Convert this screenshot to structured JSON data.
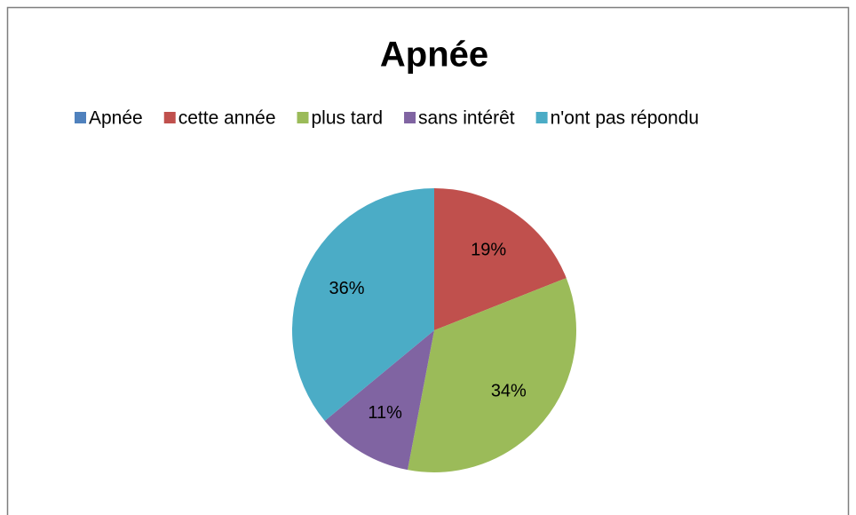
{
  "chart_data": {
    "type": "pie",
    "title": "Apnée",
    "categories": [
      "Apnée",
      "cette année",
      "plus tard",
      "sans intérêt",
      "n'ont pas répondu"
    ],
    "values": [
      0,
      19,
      34,
      11,
      36
    ],
    "value_labels": [
      null,
      "19%",
      "34%",
      "11%",
      "36%"
    ],
    "colors": [
      "#4f81bd",
      "#c0504d",
      "#9bbb59",
      "#8064a2",
      "#4bacc6"
    ],
    "legend": "top"
  }
}
